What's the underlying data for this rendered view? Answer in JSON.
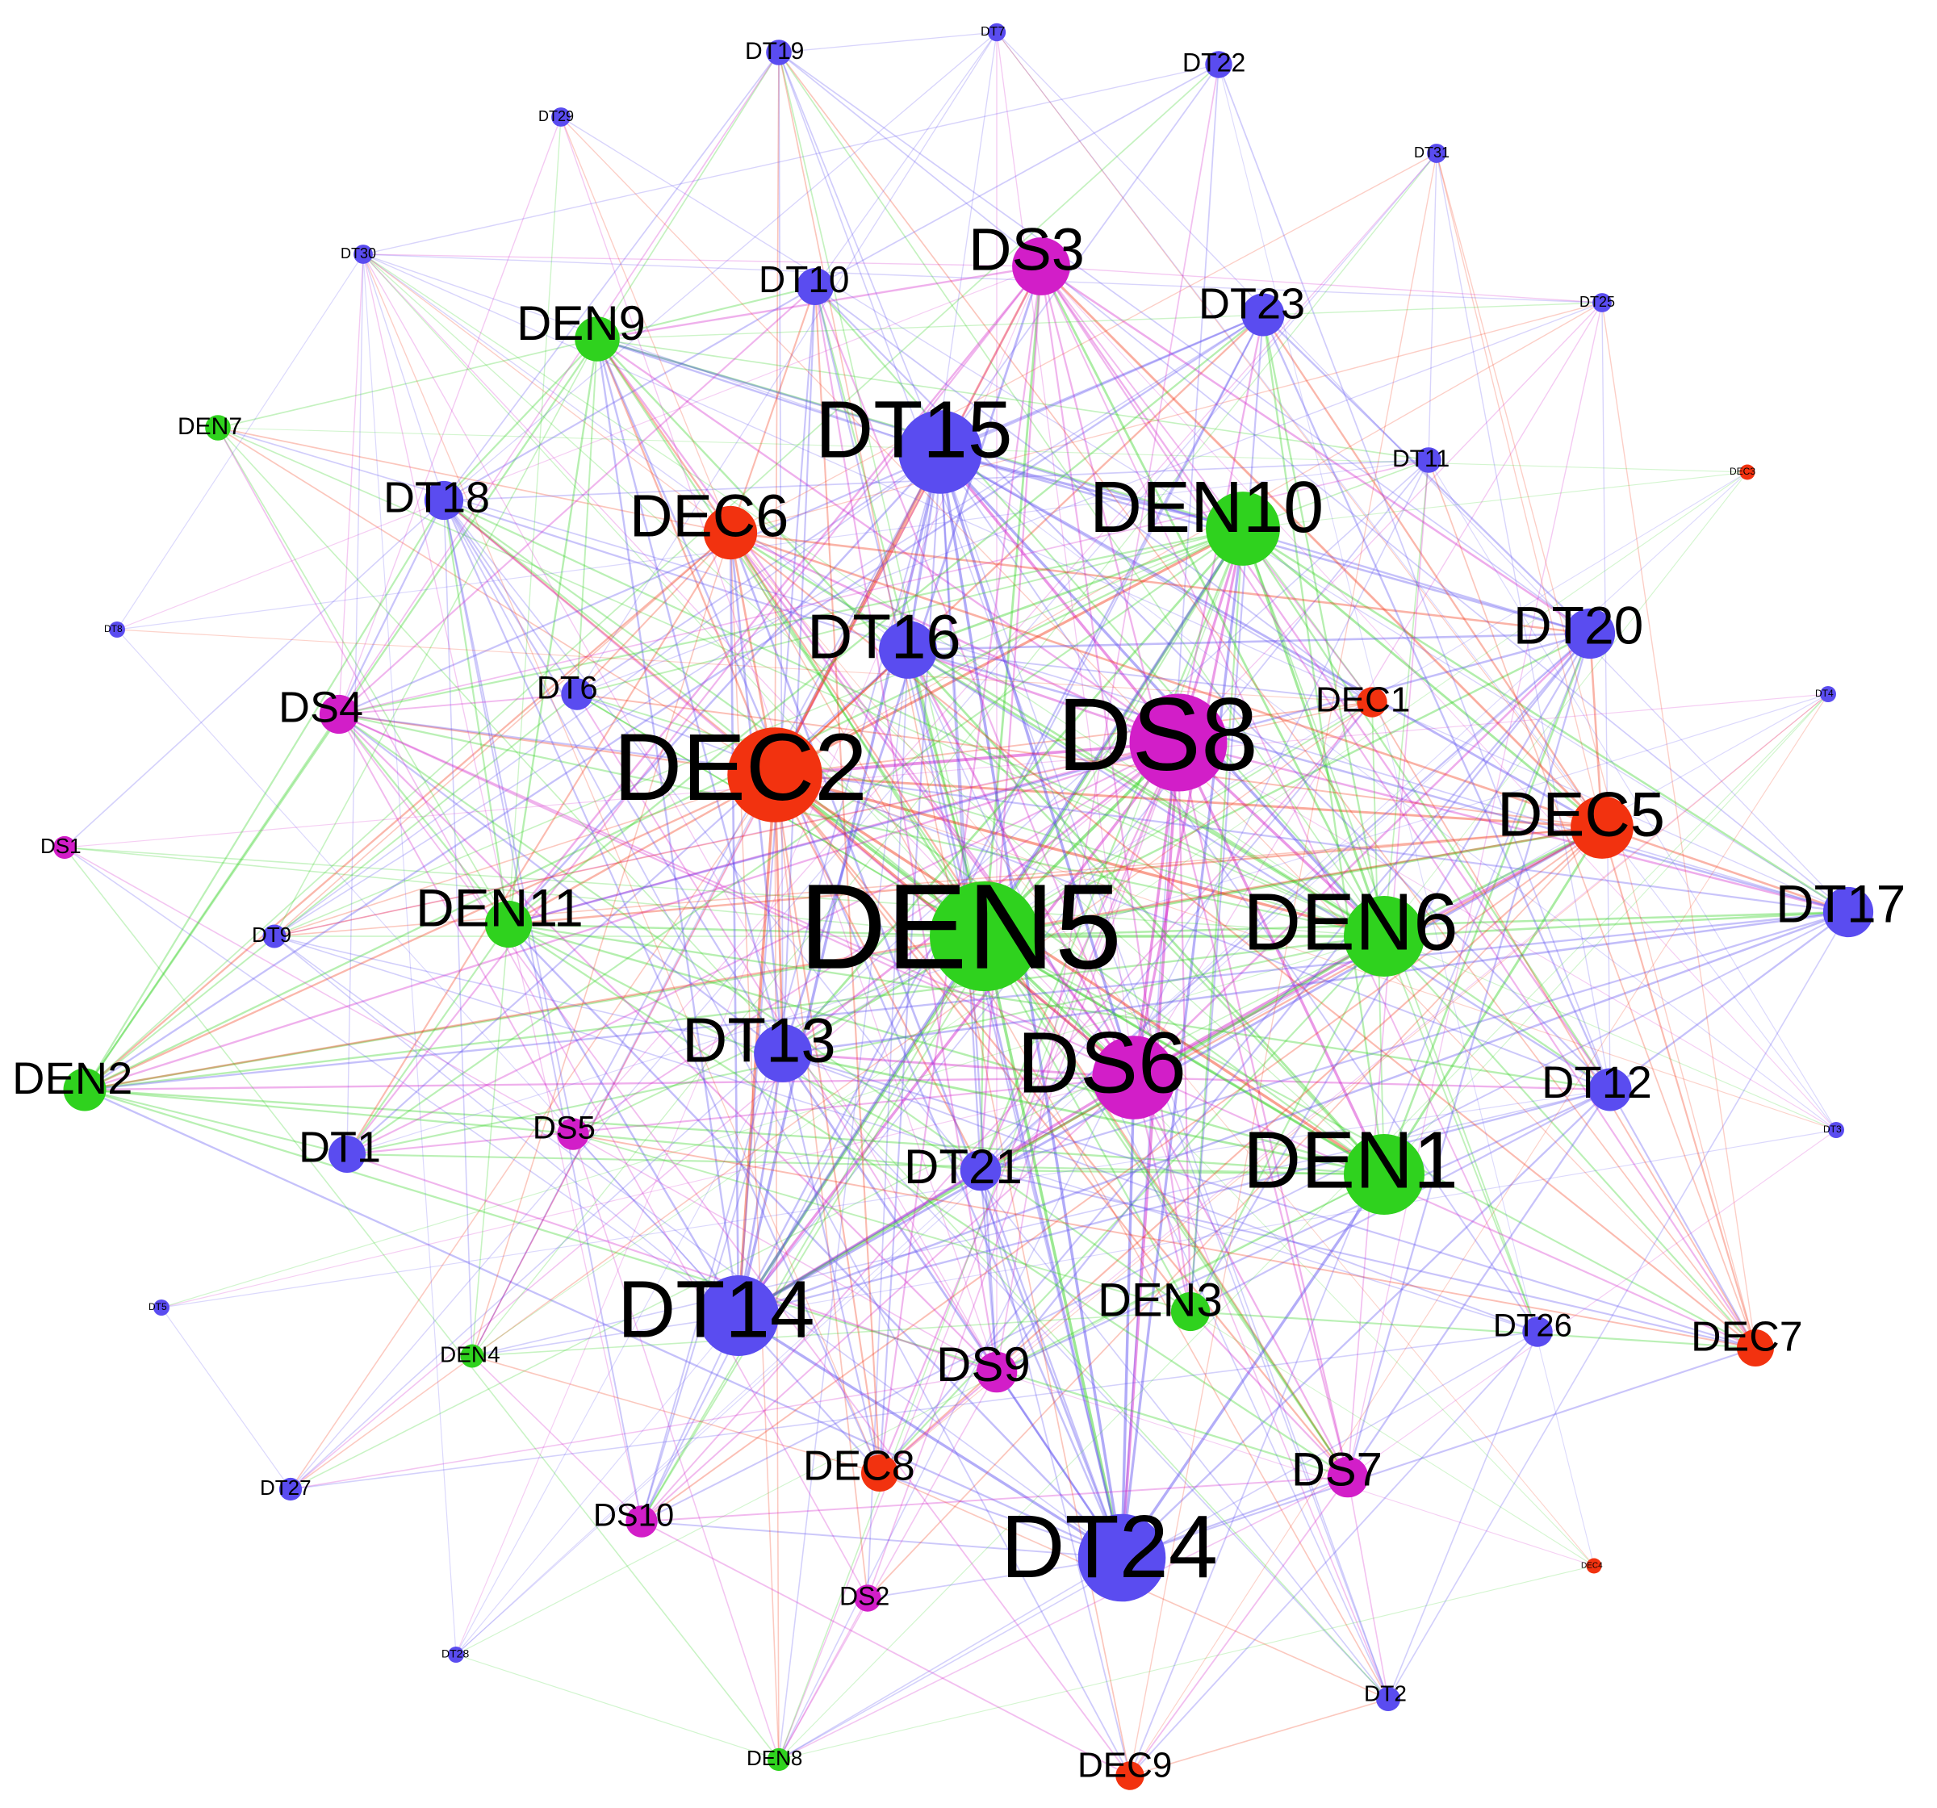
{
  "colors": {
    "DT": "#5a4cf0",
    "DS": "#d21ec8",
    "DEN": "#2fd21e",
    "DEC": "#f2320f"
  },
  "nodes": [
    {
      "id": "DEN5",
      "group": "DEN",
      "degree": 1.0
    },
    {
      "id": "DS8",
      "group": "DS",
      "degree": 0.92
    },
    {
      "id": "DEC2",
      "group": "DEC",
      "degree": 0.9
    },
    {
      "id": "DT24",
      "group": "DT",
      "degree": 0.85
    },
    {
      "id": "DT15",
      "group": "DT",
      "degree": 0.82
    },
    {
      "id": "DS6",
      "group": "DS",
      "degree": 0.82
    },
    {
      "id": "DEN6",
      "group": "DEN",
      "degree": 0.8
    },
    {
      "id": "DEN1",
      "group": "DEN",
      "degree": 0.8
    },
    {
      "id": "DT14",
      "group": "DT",
      "degree": 0.8
    },
    {
      "id": "DEN10",
      "group": "DEN",
      "degree": 0.75
    },
    {
      "id": "DEC5",
      "group": "DEC",
      "degree": 0.66
    },
    {
      "id": "DT16",
      "group": "DT",
      "degree": 0.62
    },
    {
      "id": "DT13",
      "group": "DT",
      "degree": 0.62
    },
    {
      "id": "DS3",
      "group": "DS",
      "degree": 0.62
    },
    {
      "id": "DEC6",
      "group": "DEC",
      "degree": 0.58
    },
    {
      "id": "DT20",
      "group": "DT",
      "degree": 0.55
    },
    {
      "id": "DT17",
      "group": "DT",
      "degree": 0.55
    },
    {
      "id": "DEN11",
      "group": "DEN",
      "degree": 0.52
    },
    {
      "id": "DEN9",
      "group": "DEN",
      "degree": 0.5
    },
    {
      "id": "DT23",
      "group": "DT",
      "degree": 0.48
    },
    {
      "id": "DT12",
      "group": "DT",
      "degree": 0.48
    },
    {
      "id": "DEN2",
      "group": "DEN",
      "degree": 0.48
    },
    {
      "id": "DT21",
      "group": "DT",
      "degree": 0.46
    },
    {
      "id": "DS9",
      "group": "DS",
      "degree": 0.46
    },
    {
      "id": "DS7",
      "group": "DS",
      "degree": 0.46
    },
    {
      "id": "DEN3",
      "group": "DEN",
      "degree": 0.44
    },
    {
      "id": "DT18",
      "group": "DT",
      "degree": 0.44
    },
    {
      "id": "DS4",
      "group": "DS",
      "degree": 0.44
    },
    {
      "id": "DEC8",
      "group": "DEC",
      "degree": 0.42
    },
    {
      "id": "DEC7",
      "group": "DEC",
      "degree": 0.42
    },
    {
      "id": "DT10",
      "group": "DT",
      "degree": 0.42
    },
    {
      "id": "DT1",
      "group": "DT",
      "degree": 0.42
    },
    {
      "id": "DS10",
      "group": "DS",
      "degree": 0.36
    },
    {
      "id": "DT6",
      "group": "DT",
      "degree": 0.36
    },
    {
      "id": "DS5",
      "group": "DS",
      "degree": 0.36
    },
    {
      "id": "DEC1",
      "group": "DEC",
      "degree": 0.34
    },
    {
      "id": "DT26",
      "group": "DT",
      "degree": 0.34
    },
    {
      "id": "DEC9",
      "group": "DEC",
      "degree": 0.32
    },
    {
      "id": "DS2",
      "group": "DS",
      "degree": 0.3
    },
    {
      "id": "DT22",
      "group": "DT",
      "degree": 0.3
    },
    {
      "id": "DT19",
      "group": "DT",
      "degree": 0.28
    },
    {
      "id": "DEN7",
      "group": "DEN",
      "degree": 0.28
    },
    {
      "id": "DT11",
      "group": "DT",
      "degree": 0.28
    },
    {
      "id": "DT2",
      "group": "DT",
      "degree": 0.26
    },
    {
      "id": "DT9",
      "group": "DT",
      "degree": 0.25
    },
    {
      "id": "DEN4",
      "group": "DEN",
      "degree": 0.25
    },
    {
      "id": "DT27",
      "group": "DT",
      "degree": 0.24
    },
    {
      "id": "DEN8",
      "group": "DEN",
      "degree": 0.24
    },
    {
      "id": "DS1",
      "group": "DS",
      "degree": 0.24
    },
    {
      "id": "DT29",
      "group": "DT",
      "degree": 0.18
    },
    {
      "id": "DT30",
      "group": "DT",
      "degree": 0.18
    },
    {
      "id": "DT31",
      "group": "DT",
      "degree": 0.18
    },
    {
      "id": "DT25",
      "group": "DT",
      "degree": 0.18
    },
    {
      "id": "DT7",
      "group": "DT",
      "degree": 0.16
    },
    {
      "id": "DT8",
      "group": "DT",
      "degree": 0.12
    },
    {
      "id": "DT4",
      "group": "DT",
      "degree": 0.12
    },
    {
      "id": "DT3",
      "group": "DT",
      "degree": 0.12
    },
    {
      "id": "DT5",
      "group": "DT",
      "degree": 0.12
    },
    {
      "id": "DT28",
      "group": "DT",
      "degree": 0.12
    },
    {
      "id": "DEC3",
      "group": "DEC",
      "degree": 0.1
    },
    {
      "id": "DEC4",
      "group": "DEC",
      "degree": 0.1
    }
  ]
}
